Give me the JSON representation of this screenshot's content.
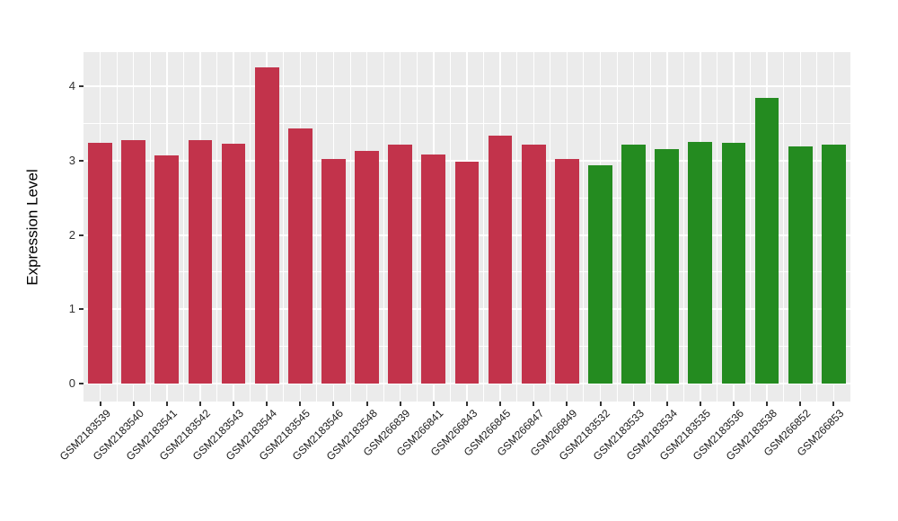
{
  "chart_data": {
    "type": "bar",
    "title": "",
    "xlabel": "",
    "ylabel": "Expression Level",
    "ylim": [
      0,
      4.46
    ],
    "yticks": [
      "0",
      "1",
      "2",
      "3",
      "4"
    ],
    "grid": "on",
    "legend": "none",
    "panel_bg": "#EBEBEB",
    "grid_color": "#FFFFFF",
    "tick_color": "#333333",
    "label_color": "#1A1A1A",
    "categories": [
      "GSM2183539",
      "GSM2183540",
      "GSM2183541",
      "GSM2183542",
      "GSM2183543",
      "GSM2183544",
      "GSM2183545",
      "GSM2183546",
      "GSM2183548",
      "GSM266839",
      "GSM266841",
      "GSM266843",
      "GSM266845",
      "GSM266847",
      "GSM266849",
      "GSM2183532",
      "GSM2183533",
      "GSM2183534",
      "GSM2183535",
      "GSM2183536",
      "GSM2183538",
      "GSM266852",
      "GSM266853"
    ],
    "values": [
      3.24,
      3.28,
      3.07,
      3.28,
      3.23,
      4.26,
      3.43,
      3.02,
      3.13,
      3.22,
      3.08,
      2.99,
      3.33,
      3.22,
      3.02,
      2.94,
      3.22,
      3.16,
      3.25,
      3.24,
      3.84,
      3.19,
      3.21
    ],
    "bar_colors": [
      "#C2334B",
      "#C2334B",
      "#C2334B",
      "#C2334B",
      "#C2334B",
      "#C2334B",
      "#C2334B",
      "#C2334B",
      "#C2334B",
      "#C2334B",
      "#C2334B",
      "#C2334B",
      "#C2334B",
      "#C2334B",
      "#C2334B",
      "#248B20",
      "#248B20",
      "#248B20",
      "#248B20",
      "#248B20",
      "#248B20",
      "#248B20",
      "#248B20"
    ]
  }
}
